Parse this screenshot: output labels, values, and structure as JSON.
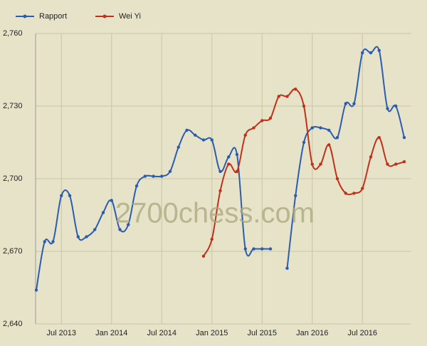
{
  "chart_data": {
    "type": "line",
    "watermark": "2700chess.com",
    "x": [
      "2013-04",
      "2013-05",
      "2013-06",
      "2013-07",
      "2013-08",
      "2013-09",
      "2013-10",
      "2013-11",
      "2013-12",
      "2014-01",
      "2014-02",
      "2014-03",
      "2014-04",
      "2014-05",
      "2014-06",
      "2014-07",
      "2014-08",
      "2014-09",
      "2014-10",
      "2014-11",
      "2014-12",
      "2015-01",
      "2015-02",
      "2015-03",
      "2015-04",
      "2015-05",
      "2015-06",
      "2015-07",
      "2015-08",
      "2015-09",
      "2015-10",
      "2015-11",
      "2015-12",
      "2016-01",
      "2016-02",
      "2016-03",
      "2016-04",
      "2016-05",
      "2016-06",
      "2016-07",
      "2016-08",
      "2016-09",
      "2016-10",
      "2016-11",
      "2016-12"
    ],
    "series": [
      {
        "name": "Rapport",
        "color": "#2a5db0",
        "values": [
          2654,
          2674,
          2674,
          2693,
          2693,
          2676,
          2676,
          2679,
          2686,
          2691,
          2679,
          2681,
          2697,
          2701,
          2701,
          2701,
          2703,
          2713,
          2720,
          2718,
          2716,
          2716,
          2703,
          2709,
          2710,
          2671,
          2671,
          2671,
          2671,
          null,
          2663,
          2693,
          2715,
          2721,
          2721,
          2720,
          2717,
          2731,
          2731,
          2752,
          2752,
          2753,
          2729,
          2730,
          2717
        ]
      },
      {
        "name": "Wei Yi",
        "color": "#c0311a",
        "values": [
          null,
          null,
          null,
          null,
          null,
          null,
          null,
          null,
          null,
          null,
          null,
          null,
          null,
          null,
          null,
          null,
          null,
          null,
          null,
          null,
          2668,
          2675,
          2695,
          2706,
          2703,
          2718,
          2721,
          2724,
          2725,
          2734,
          2734,
          2737,
          2730,
          2706,
          2706,
          2714,
          2700,
          2694,
          2694,
          2696,
          2709,
          2717,
          2706,
          2706,
          2707
        ]
      }
    ],
    "ylim": [
      2640,
      2760
    ],
    "yticks": [
      {
        "value": 2640,
        "label": "2,640"
      },
      {
        "value": 2670,
        "label": "2,670"
      },
      {
        "value": 2700,
        "label": "2,700"
      },
      {
        "value": 2730,
        "label": "2,730"
      },
      {
        "value": 2760,
        "label": "2,760"
      }
    ],
    "xticks": [
      {
        "value": "2013-07",
        "label": "Jul 2013"
      },
      {
        "value": "2014-01",
        "label": "Jan 2014"
      },
      {
        "value": "2014-07",
        "label": "Jul 2014"
      },
      {
        "value": "2015-01",
        "label": "Jan 2015"
      },
      {
        "value": "2015-07",
        "label": "Jul 2015"
      },
      {
        "value": "2016-01",
        "label": "Jan 2016"
      },
      {
        "value": "2016-07",
        "label": "Jul 2016"
      }
    ],
    "grid": true,
    "legend": "top-left"
  }
}
